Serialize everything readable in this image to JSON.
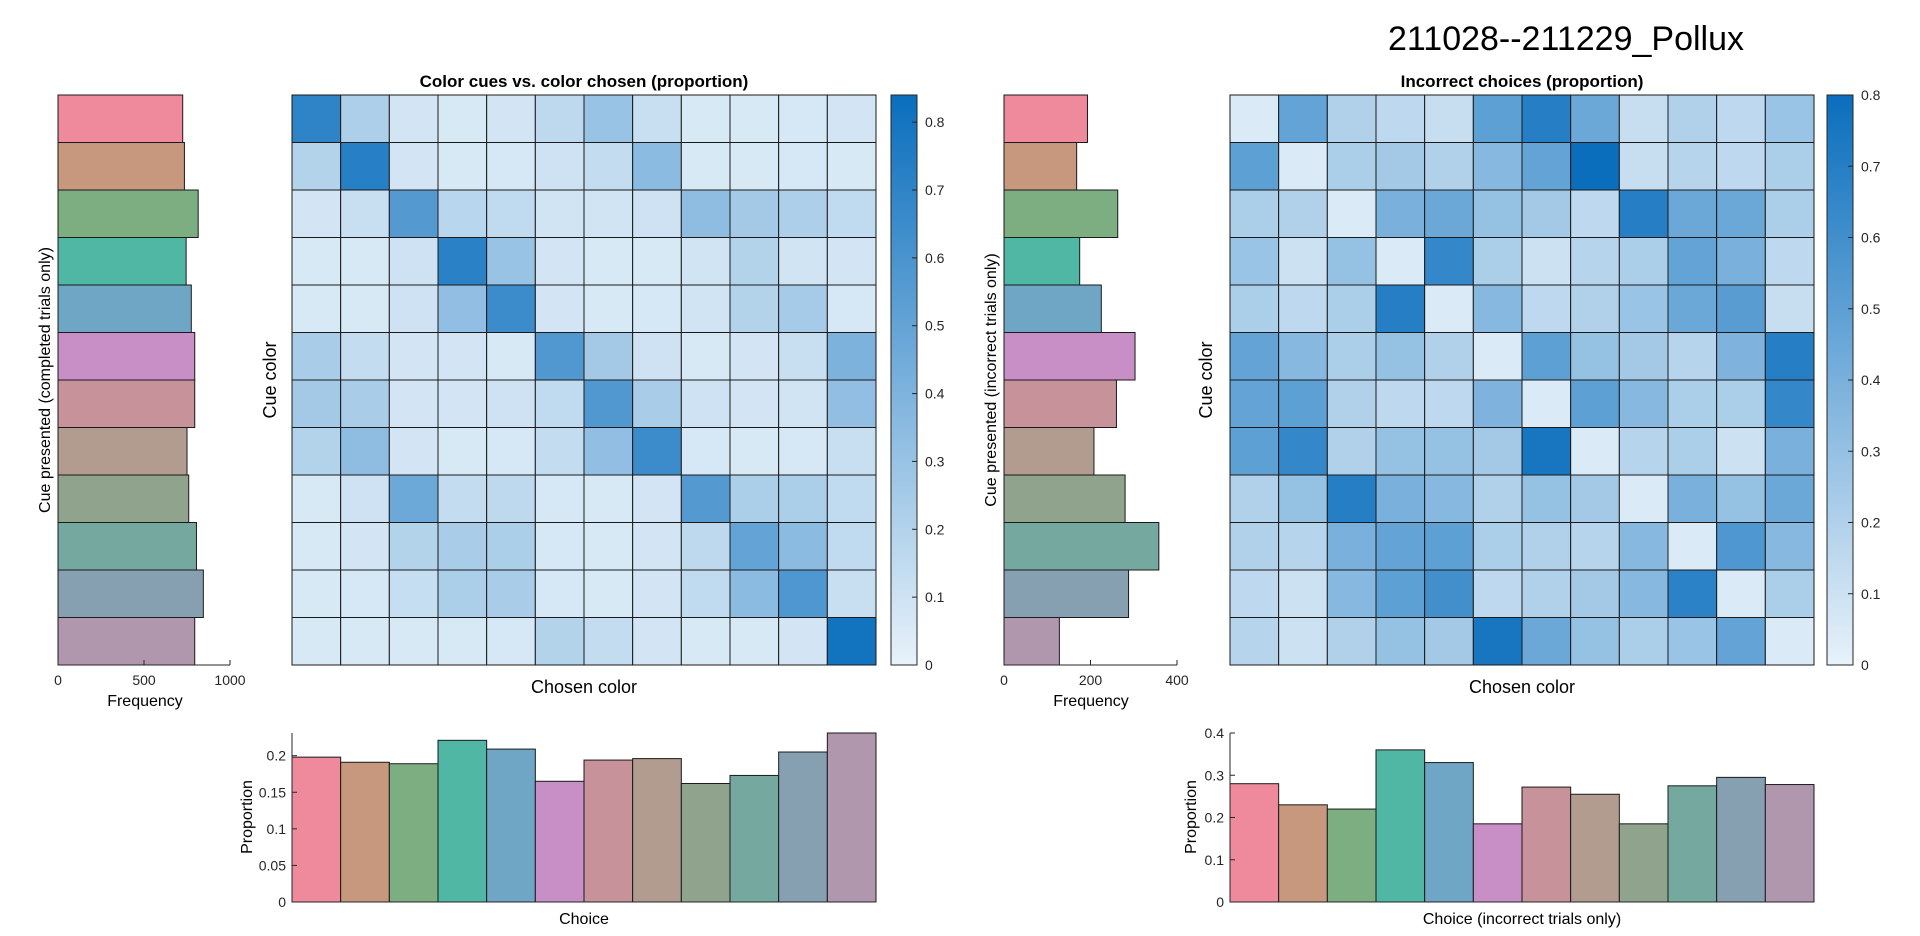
{
  "figure_title": "211028--211229_Pollux",
  "colors": [
    "#ef8a9c",
    "#c8987e",
    "#7dae81",
    "#4fb7a3",
    "#6fa6c6",
    "#c78fc5",
    "#c79299",
    "#b29c8f",
    "#8fa38d",
    "#75a99f",
    "#87a0b1",
    "#b097ae"
  ],
  "colormap": {
    "low": "#e8f2fa",
    "high": "#0a6ebd"
  },
  "chart_data": [
    {
      "id": "hist-completed",
      "type": "bar",
      "orientation": "horizontal",
      "categories": [
        "1",
        "2",
        "3",
        "4",
        "5",
        "6",
        "7",
        "8",
        "9",
        "10",
        "11",
        "12"
      ],
      "values": [
        725,
        735,
        815,
        745,
        775,
        795,
        795,
        750,
        760,
        805,
        845,
        795
      ],
      "xlabel": "Frequency",
      "ylabel": "Cue presented (completed trials only)",
      "xlim": [
        0,
        1000
      ],
      "xticks": [
        "0",
        "500",
        "1000"
      ]
    },
    {
      "id": "heat-all",
      "type": "heatmap",
      "title": "Color cues vs. color chosen (proportion)",
      "xlabel": "Chosen color",
      "ylabel": "Cue color",
      "clim": [
        0,
        0.84
      ],
      "colorbar_ticks": [
        "0",
        "0.1",
        "0.2",
        "0.3",
        "0.4",
        "0.5",
        "0.6",
        "0.7",
        "0.8"
      ],
      "values": [
        [
          0.7,
          0.22,
          0.08,
          0.06,
          0.08,
          0.16,
          0.3,
          0.12,
          0.06,
          0.06,
          0.07,
          0.08
        ],
        [
          0.2,
          0.73,
          0.08,
          0.06,
          0.07,
          0.1,
          0.14,
          0.35,
          0.06,
          0.06,
          0.07,
          0.06
        ],
        [
          0.08,
          0.12,
          0.56,
          0.18,
          0.15,
          0.09,
          0.09,
          0.1,
          0.34,
          0.26,
          0.22,
          0.15
        ],
        [
          0.06,
          0.06,
          0.1,
          0.72,
          0.3,
          0.08,
          0.06,
          0.06,
          0.09,
          0.2,
          0.09,
          0.08
        ],
        [
          0.06,
          0.06,
          0.1,
          0.33,
          0.65,
          0.08,
          0.06,
          0.07,
          0.09,
          0.2,
          0.25,
          0.07
        ],
        [
          0.24,
          0.14,
          0.08,
          0.08,
          0.06,
          0.57,
          0.26,
          0.1,
          0.06,
          0.08,
          0.12,
          0.41
        ],
        [
          0.26,
          0.24,
          0.08,
          0.08,
          0.1,
          0.15,
          0.57,
          0.24,
          0.1,
          0.08,
          0.09,
          0.33
        ],
        [
          0.2,
          0.34,
          0.08,
          0.06,
          0.07,
          0.14,
          0.33,
          0.65,
          0.07,
          0.06,
          0.07,
          0.12
        ],
        [
          0.06,
          0.1,
          0.47,
          0.14,
          0.16,
          0.07,
          0.06,
          0.08,
          0.56,
          0.23,
          0.23,
          0.15
        ],
        [
          0.06,
          0.08,
          0.2,
          0.24,
          0.23,
          0.07,
          0.06,
          0.08,
          0.16,
          0.5,
          0.35,
          0.15
        ],
        [
          0.06,
          0.07,
          0.13,
          0.23,
          0.24,
          0.07,
          0.06,
          0.08,
          0.15,
          0.35,
          0.58,
          0.12
        ],
        [
          0.06,
          0.06,
          0.06,
          0.06,
          0.07,
          0.2,
          0.14,
          0.08,
          0.06,
          0.06,
          0.08,
          0.81
        ]
      ]
    },
    {
      "id": "bar-choice",
      "type": "bar",
      "categories": [
        "1",
        "2",
        "3",
        "4",
        "5",
        "6",
        "7",
        "8",
        "9",
        "10",
        "11",
        "12"
      ],
      "values": [
        0.198,
        0.191,
        0.189,
        0.221,
        0.209,
        0.165,
        0.194,
        0.196,
        0.162,
        0.173,
        0.205,
        0.231
      ],
      "xlabel": "Choice",
      "ylabel": "Proportion",
      "ylim": [
        0,
        0.231
      ],
      "yticks": [
        0,
        0.05,
        0.1,
        0.15,
        0.2
      ],
      "ytick_labels": [
        "0",
        "0.05",
        "0.1",
        "0.15",
        "0.2"
      ]
    },
    {
      "id": "hist-incorrect",
      "type": "bar",
      "orientation": "horizontal",
      "categories": [
        "1",
        "2",
        "3",
        "4",
        "5",
        "6",
        "7",
        "8",
        "9",
        "10",
        "11",
        "12"
      ],
      "values": [
        193,
        168,
        263,
        175,
        225,
        303,
        260,
        208,
        280,
        358,
        288,
        128
      ],
      "xlabel": "Frequency",
      "ylabel": "Cue presented (incorrect trials only)",
      "xlim": [
        0,
        400
      ],
      "xticks": [
        "0",
        "200",
        "400"
      ]
    },
    {
      "id": "heat-incorrect",
      "type": "heatmap",
      "title": "Incorrect choices (proportion)",
      "xlabel": "Chosen color",
      "ylabel": "Cue color",
      "clim": [
        0,
        0.8
      ],
      "colorbar_ticks": [
        "0",
        "0.1",
        "0.2",
        "0.3",
        "0.4",
        "0.5",
        "0.6",
        "0.7",
        "0.8"
      ],
      "values": [
        [
          0.05,
          0.48,
          0.2,
          0.15,
          0.12,
          0.5,
          0.7,
          0.45,
          0.12,
          0.2,
          0.15,
          0.28
        ],
        [
          0.5,
          0.05,
          0.22,
          0.25,
          0.2,
          0.35,
          0.48,
          0.8,
          0.12,
          0.18,
          0.15,
          0.22
        ],
        [
          0.22,
          0.2,
          0.05,
          0.4,
          0.45,
          0.3,
          0.25,
          0.15,
          0.7,
          0.45,
          0.45,
          0.22
        ],
        [
          0.28,
          0.1,
          0.3,
          0.05,
          0.65,
          0.22,
          0.1,
          0.18,
          0.22,
          0.48,
          0.4,
          0.15
        ],
        [
          0.22,
          0.15,
          0.22,
          0.7,
          0.05,
          0.35,
          0.15,
          0.2,
          0.28,
          0.45,
          0.52,
          0.12
        ],
        [
          0.48,
          0.35,
          0.22,
          0.3,
          0.2,
          0.05,
          0.5,
          0.3,
          0.25,
          0.18,
          0.38,
          0.7
        ],
        [
          0.48,
          0.5,
          0.2,
          0.15,
          0.15,
          0.38,
          0.05,
          0.5,
          0.35,
          0.22,
          0.22,
          0.65
        ],
        [
          0.5,
          0.65,
          0.2,
          0.3,
          0.3,
          0.25,
          0.75,
          0.05,
          0.18,
          0.22,
          0.1,
          0.4
        ],
        [
          0.2,
          0.3,
          0.7,
          0.4,
          0.35,
          0.2,
          0.3,
          0.25,
          0.05,
          0.4,
          0.3,
          0.45
        ],
        [
          0.2,
          0.18,
          0.4,
          0.48,
          0.5,
          0.22,
          0.2,
          0.18,
          0.35,
          0.05,
          0.55,
          0.35
        ],
        [
          0.15,
          0.1,
          0.35,
          0.5,
          0.6,
          0.15,
          0.2,
          0.25,
          0.35,
          0.68,
          0.05,
          0.22
        ],
        [
          0.18,
          0.1,
          0.2,
          0.3,
          0.25,
          0.75,
          0.45,
          0.3,
          0.22,
          0.28,
          0.48,
          0.05
        ]
      ]
    },
    {
      "id": "bar-incorrect",
      "type": "bar",
      "categories": [
        "1",
        "2",
        "3",
        "4",
        "5",
        "6",
        "7",
        "8",
        "9",
        "10",
        "11",
        "12"
      ],
      "values": [
        0.28,
        0.23,
        0.22,
        0.36,
        0.33,
        0.185,
        0.272,
        0.255,
        0.185,
        0.275,
        0.295,
        0.278
      ],
      "xlabel": "Choice (incorrect trials only)",
      "ylabel": "Proportion",
      "ylim": [
        0,
        0.4
      ],
      "yticks": [
        0,
        0.1,
        0.2,
        0.3,
        0.4
      ],
      "ytick_labels": [
        "0",
        "0.1",
        "0.2",
        "0.3",
        "0.4"
      ]
    }
  ]
}
